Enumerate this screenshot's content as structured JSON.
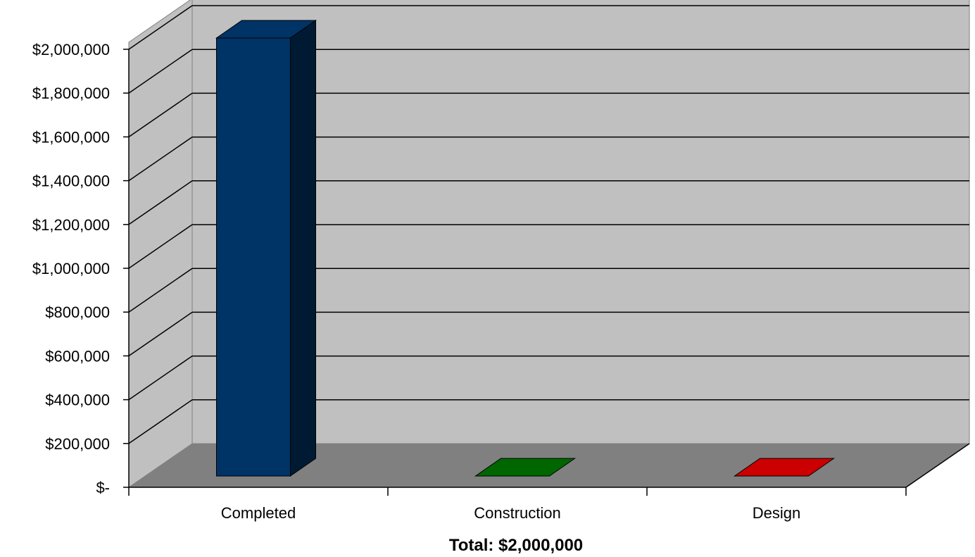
{
  "chart_data": {
    "type": "bar",
    "style": "3d-column",
    "categories": [
      "Completed",
      "Construction",
      "Design"
    ],
    "values": [
      2000000,
      0,
      0
    ],
    "colors": [
      "#003366",
      "#006600",
      "#cc0000"
    ],
    "xlabel": "Total: $2,000,000",
    "ylabel": "",
    "ylim": [
      0,
      2000000
    ],
    "ytick_values": [
      0,
      200000,
      400000,
      600000,
      800000,
      1000000,
      1200000,
      1400000,
      1600000,
      1800000,
      2000000
    ],
    "ytick_labels": [
      "$-",
      "$200,000",
      "$400,000",
      "$600,000",
      "$800,000",
      "$1,000,000",
      "$1,200,000",
      "$1,400,000",
      "$1,600,000",
      "$1,800,000",
      "$2,000,000"
    ],
    "grid": true,
    "legend": "none",
    "wall_color": "#c0c0c0",
    "floor_color": "#808080"
  }
}
